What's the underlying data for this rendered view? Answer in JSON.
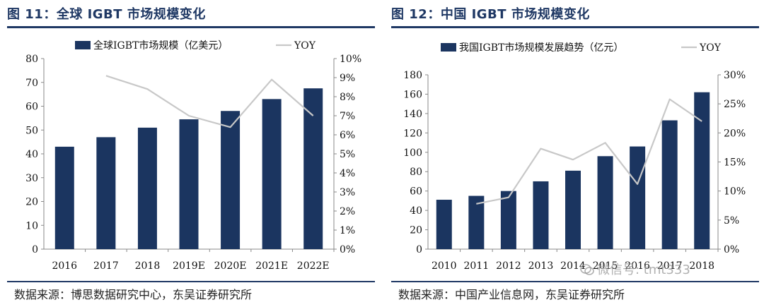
{
  "watermark": "微信号: tmt333",
  "colors": {
    "bar": "#1b3560",
    "line": "#c8c8c8",
    "accent": "#1f3864"
  },
  "charts": [
    {
      "title": "图 11：全球 IGBT 市场规模变化",
      "source": "数据来源：博思数据研究中心，东吴证券研究所",
      "chart_data": {
        "type": "bar",
        "categories": [
          "2016",
          "2017",
          "2018",
          "2019E",
          "2020E",
          "2021E",
          "2022E"
        ],
        "series": [
          {
            "name": "全球IGBT市场规模（亿美元）",
            "type": "bar",
            "axis": "left",
            "values": [
              43,
              47,
              51,
              54.5,
              58,
              63,
              67.5
            ]
          },
          {
            "name": "YOY",
            "type": "line",
            "axis": "right",
            "values": [
              null,
              9.1,
              8.4,
              7.0,
              6.4,
              8.9,
              7.0
            ]
          }
        ],
        "left_axis": {
          "min": 0,
          "max": 80,
          "step": 10,
          "ticks": [
            "0",
            "10",
            "20",
            "30",
            "40",
            "50",
            "60",
            "70",
            "80"
          ]
        },
        "right_axis": {
          "min": 0,
          "max": 10,
          "step": 1,
          "ticks": [
            "0%",
            "1%",
            "2%",
            "3%",
            "4%",
            "5%",
            "6%",
            "7%",
            "8%",
            "9%",
            "10%"
          ]
        },
        "legend": "top"
      }
    },
    {
      "title": "图 12：中国 IGBT 市场规模变化",
      "source": "数据来源：中国产业信息网，东吴证券研究所",
      "chart_data": {
        "type": "bar",
        "categories": [
          "2010",
          "2011",
          "2012",
          "2013",
          "2014",
          "2015",
          "2016",
          "2017",
          "2018"
        ],
        "series": [
          {
            "name": "我国IGBT市场规模发展趋势（亿元）",
            "type": "bar",
            "axis": "left",
            "values": [
              51,
              55,
              60,
              70,
              81,
              96,
              106,
              133,
              162
            ]
          },
          {
            "name": "YOY",
            "type": "line",
            "axis": "right",
            "values": [
              null,
              7.8,
              8.9,
              17.3,
              15.4,
              18.3,
              11.2,
              25.8,
              22.0
            ]
          }
        ],
        "left_axis": {
          "min": 0,
          "max": 180,
          "step": 20,
          "ticks": [
            "0",
            "20",
            "40",
            "60",
            "80",
            "100",
            "120",
            "140",
            "160",
            "180"
          ]
        },
        "right_axis": {
          "min": 0,
          "max": 30,
          "step": 5,
          "ticks": [
            "0%",
            "5%",
            "10%",
            "15%",
            "20%",
            "25%",
            "30%"
          ]
        },
        "legend": "top"
      }
    }
  ]
}
